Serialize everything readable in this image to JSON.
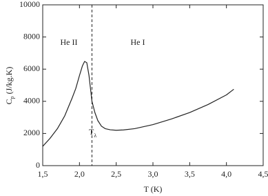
{
  "chart_data": {
    "type": "line",
    "x": [
      1.5,
      1.6,
      1.7,
      1.8,
      1.9,
      1.95,
      2.0,
      2.04,
      2.07,
      2.1,
      2.13,
      2.17,
      2.21,
      2.25,
      2.3,
      2.35,
      2.42,
      2.5,
      2.6,
      2.75,
      3.0,
      3.25,
      3.5,
      3.75,
      4.0,
      4.1
    ],
    "series": [
      {
        "color": "#222222",
        "values": [
          1200,
          1700,
          2300,
          3100,
          4200,
          4800,
          5600,
          6200,
          6480,
          6400,
          5600,
          4000,
          3300,
          2800,
          2450,
          2300,
          2230,
          2200,
          2220,
          2300,
          2550,
          2900,
          3300,
          3800,
          4400,
          4750
        ]
      }
    ],
    "xlim": [
      1.5,
      4.5
    ],
    "xticks": [
      {
        "value": 1.5,
        "label": "1,5"
      },
      {
        "value": 2.0,
        "label": "2,0"
      },
      {
        "value": 2.5,
        "label": "2,5"
      },
      {
        "value": 3.0,
        "label": "3,0"
      },
      {
        "value": 3.5,
        "label": "3,5"
      },
      {
        "value": 4.0,
        "label": "4,0"
      },
      {
        "value": 4.5,
        "label": "4,5"
      }
    ],
    "ylim": [
      0,
      10000
    ],
    "yticks": [
      0,
      2000,
      4000,
      6000,
      8000,
      10000
    ],
    "xlabel": "T (K)",
    "ylabel": {
      "symbol": "C",
      "subscript": "p",
      "unit": "(J/kg.K)"
    },
    "lambda_line": {
      "x": 2.17,
      "symbol": "T",
      "subscript": "λ"
    },
    "annotations": [
      "He II",
      "He I"
    ]
  }
}
